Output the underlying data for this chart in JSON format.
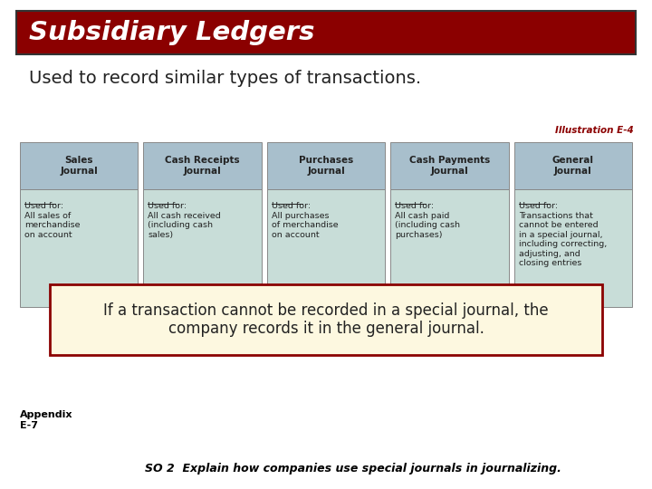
{
  "title": "Subsidiary Ledgers",
  "subtitle": "Used to record similar types of transactions.",
  "illustration_label": "Illustration E-4",
  "bg_color": "#ffffff",
  "title_bg_color": "#8B0000",
  "title_text_color": "#ffffff",
  "subtitle_color": "#222222",
  "header_bg_color": "#a8bfcc",
  "body_bg_color": "#c8ddd8",
  "header_text_color": "#222222",
  "body_text_color": "#222222",
  "box_border_color": "#888888",
  "highlight_box_bg": "#fdf8e0",
  "highlight_box_border": "#8B0000",
  "highlight_text": "If a transaction cannot be recorded in a special journal, the\ncompany records it in the general journal.",
  "highlight_text_color": "#222222",
  "appendix_text": "Appendix\nE-7",
  "footer_text": "SO 2  Explain how companies use special journals in journalizing.",
  "footer_text_color": "#000000",
  "columns": [
    {
      "header": "Sales\nJournal",
      "body": "Used for:\n\nAll sales of\nmerchandise\non account"
    },
    {
      "header": "Cash Receipts\nJournal",
      "body": "Used for:\n\nAll cash received\n(including cash\nsales)"
    },
    {
      "header": "Purchases\nJournal",
      "body": "Used for:\n\nAll purchases\nof merchandise\non account"
    },
    {
      "header": "Cash Payments\nJournal",
      "body": "Used for:\n\nAll cash paid\n(including cash\npurchases)"
    },
    {
      "header": "General\nJournal",
      "body": "Used for:\n\nTransactions that\ncannot be entered\nin a special journal,\nincluding correcting,\nadjusting, and\nclosing entries"
    }
  ]
}
